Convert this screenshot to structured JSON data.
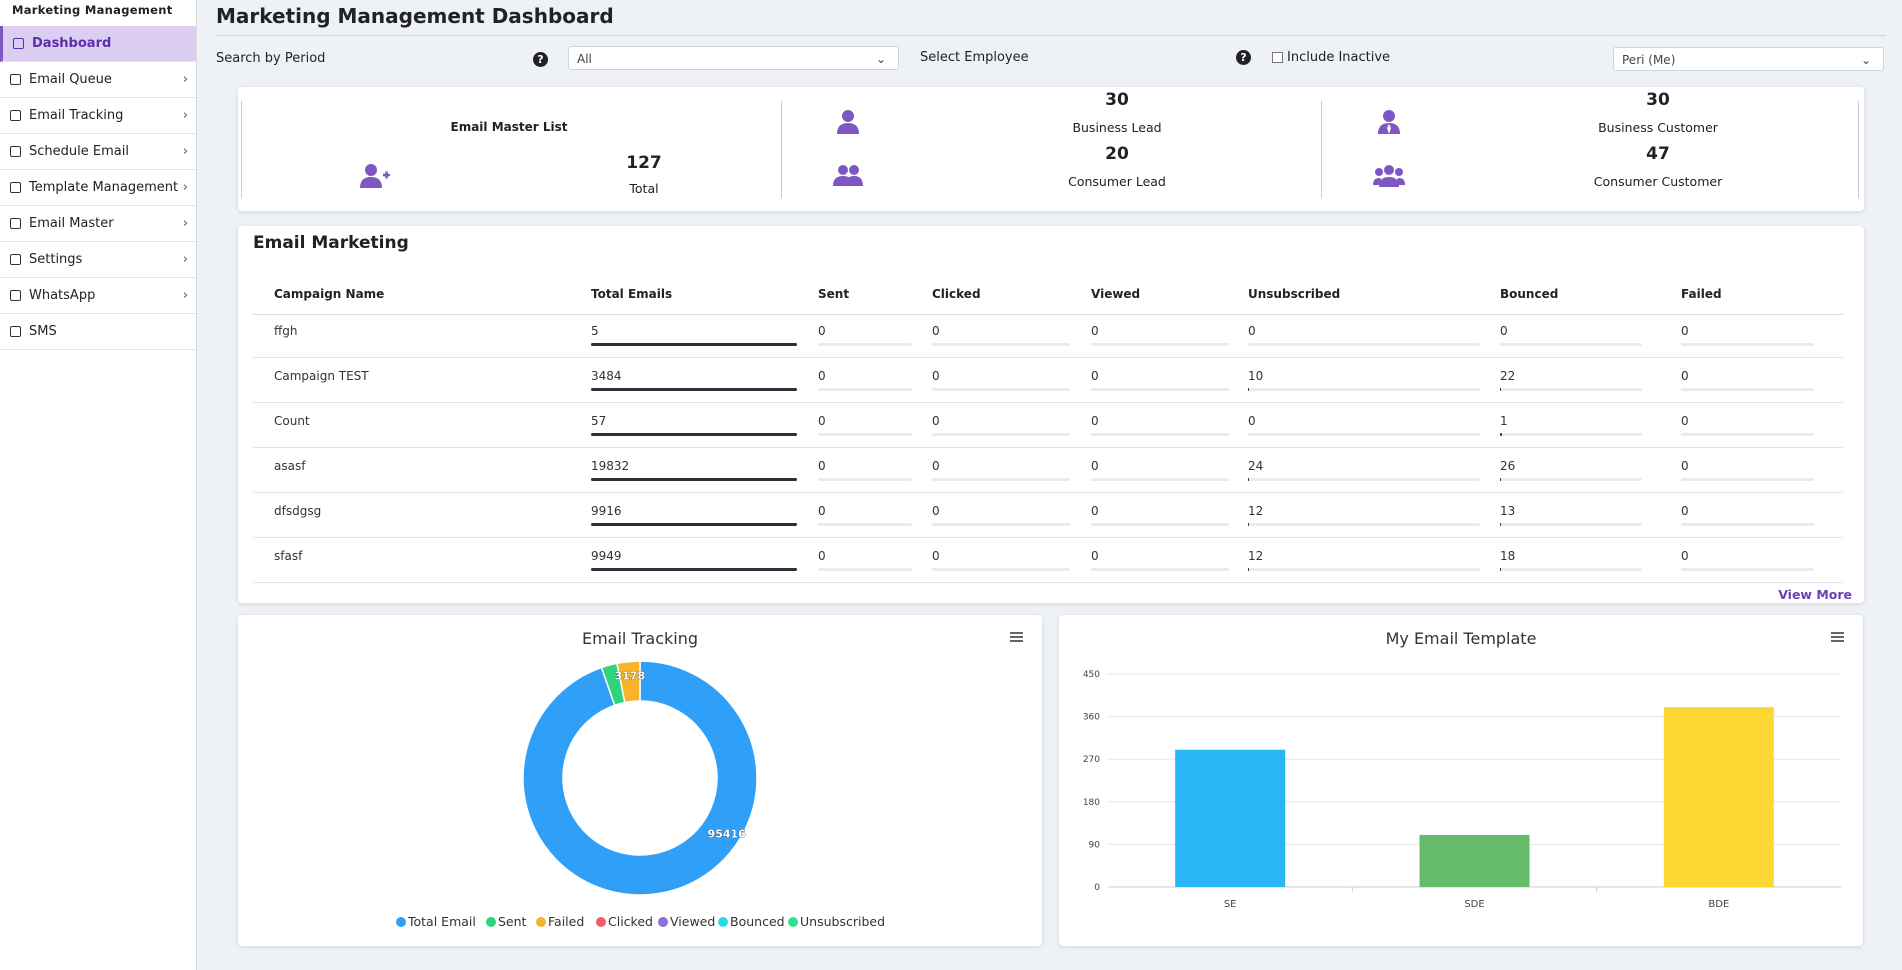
{
  "sidebar": {
    "title": "Marketing Management",
    "items": [
      "Dashboard",
      "Email Queue",
      "Email Tracking",
      "Schedule Email",
      "Template Management",
      "Email Master",
      "Settings",
      "WhatsApp",
      "SMS"
    ]
  },
  "header": {
    "title": "Marketing Management Dashboard"
  },
  "filters": {
    "period_label": "Search by Period",
    "period_value": "All",
    "employee_label": "Select Employee",
    "include_inactive": "Include Inactive",
    "employee_value": "Peri (Me)"
  },
  "summary": {
    "master": {
      "title": "Email Master List",
      "value": 127,
      "label": "Total"
    },
    "stats": [
      {
        "value": 30,
        "label": "Business Lead"
      },
      {
        "value": 20,
        "label": "Consumer Lead"
      },
      {
        "value": 30,
        "label": "Business Customer"
      },
      {
        "value": 47,
        "label": "Consumer Customer"
      }
    ]
  },
  "email_marketing": {
    "title": "Email Marketing",
    "columns": [
      "Campaign Name",
      "Total Emails",
      "Sent",
      "Clicked",
      "Viewed",
      "Unsubscribed",
      "Bounced",
      "Failed"
    ],
    "rows": [
      [
        "ffgh",
        5,
        0,
        0,
        0,
        0,
        0,
        0
      ],
      [
        "Campaign TEST",
        3484,
        0,
        0,
        0,
        10,
        22,
        0
      ],
      [
        "Count",
        57,
        0,
        0,
        0,
        0,
        1,
        0
      ],
      [
        "asasf",
        19832,
        0,
        0,
        0,
        24,
        26,
        0
      ],
      [
        "dfsdgsg",
        9916,
        0,
        0,
        0,
        12,
        13,
        0
      ],
      [
        "sfasf",
        9949,
        0,
        0,
        0,
        12,
        18,
        0
      ]
    ],
    "view_more": "View More"
  },
  "email_tracking": {
    "type": "donut",
    "title": "Email Tracking",
    "series": [
      {
        "name": "Total Email",
        "color": "#2f9ff8",
        "value": 95416
      },
      {
        "name": "Sent",
        "color": "#2ed47a",
        "value": 2200
      },
      {
        "name": "Failed",
        "color": "#f7b32b",
        "value": 3178
      },
      {
        "name": "Clicked",
        "color": "#f25c6e",
        "value": 0
      },
      {
        "name": "Viewed",
        "color": "#8e6fd8",
        "value": 0
      },
      {
        "name": "Bounced",
        "color": "#2bd9e8",
        "value": 0
      },
      {
        "name": "Unsubscribed",
        "color": "#2ee08f",
        "value": 0
      }
    ]
  },
  "email_template": {
    "type": "bar",
    "title": "My Email Template",
    "categories": [
      "SE",
      "SDE",
      "BDE"
    ],
    "values": [
      290,
      110,
      380
    ],
    "colors": [
      "#29b6f6",
      "#66bb6a",
      "#fdd835"
    ],
    "ylim": [
      0,
      450
    ],
    "yticks": [
      0,
      90,
      180,
      270,
      360,
      450
    ],
    "grid": true
  }
}
